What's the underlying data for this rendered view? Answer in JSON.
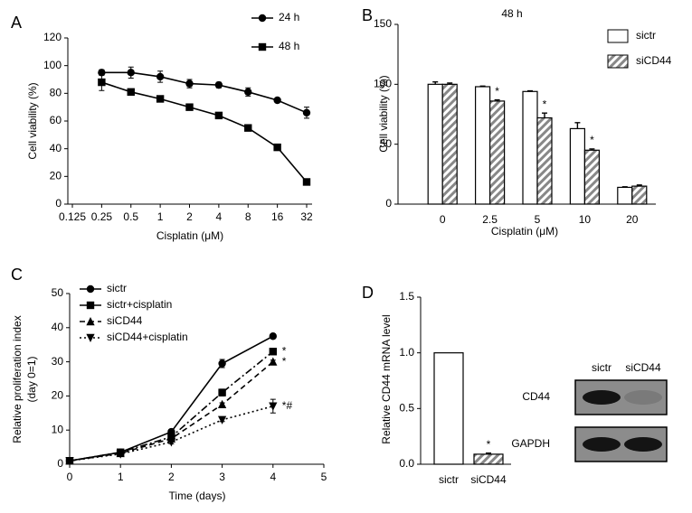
{
  "chart_data": [
    {
      "panel": "A",
      "type": "line",
      "xlabel": "Cisplatin (μM)",
      "ylabel": "Cell viability (%)",
      "x": [
        0.25,
        0.5,
        1,
        2,
        4,
        8,
        16,
        32
      ],
      "xscale": "log2",
      "xlim": [
        0.125,
        32
      ],
      "xticks": [
        0.125,
        0.25,
        0.5,
        1,
        2,
        4,
        8,
        16,
        32
      ],
      "ylim": [
        0,
        120
      ],
      "yticks": [
        0,
        20,
        40,
        60,
        80,
        100,
        120
      ],
      "legend": "upper right",
      "series": [
        {
          "name": "24 h",
          "color": "#000000",
          "marker": "circle",
          "linestyle": "solid",
          "values": [
            95,
            95,
            92,
            87,
            86,
            81,
            75,
            66
          ],
          "errors": [
            2,
            4,
            4,
            3,
            2,
            3,
            1,
            4
          ]
        },
        {
          "name": "48 h",
          "color": "#000000",
          "marker": "square",
          "linestyle": "solid",
          "values": [
            88,
            81,
            76,
            70,
            64,
            55,
            41,
            16
          ],
          "errors": [
            6,
            2,
            2,
            1,
            1,
            1,
            1,
            1
          ]
        }
      ]
    },
    {
      "panel": "B",
      "type": "bar",
      "title": "48 h",
      "xlabel": "Cisplatin (μM)",
      "ylabel": "Cell viability (%)",
      "categories": [
        "0",
        "2.5",
        "5",
        "10",
        "20"
      ],
      "ylim": [
        0,
        150
      ],
      "yticks": [
        0,
        50,
        100,
        150
      ],
      "legend": "upper right",
      "series": [
        {
          "name": "sictr",
          "color": "#ffffff",
          "hatch": false,
          "values": [
            100,
            98,
            94,
            63,
            14
          ],
          "errors": [
            2,
            0.5,
            0.5,
            5,
            0.5
          ]
        },
        {
          "name": "siCD44",
          "color": "#888888",
          "hatch": true,
          "values": [
            100,
            86,
            72,
            45,
            15
          ],
          "errors": [
            1,
            1,
            4,
            1,
            1
          ]
        }
      ],
      "annotations": [
        {
          "text": "*",
          "category": "2.5",
          "series": "siCD44"
        },
        {
          "text": "*",
          "category": "5",
          "series": "siCD44"
        },
        {
          "text": "*",
          "category": "10",
          "series": "siCD44"
        }
      ]
    },
    {
      "panel": "C",
      "type": "line",
      "xlabel": "Time (days)",
      "ylabel": [
        "Relative proliferation index",
        "(day 0=1)"
      ],
      "x": [
        0,
        1,
        2,
        3,
        4
      ],
      "xlim": [
        0,
        5
      ],
      "xticks": [
        0,
        1,
        2,
        3,
        4,
        5
      ],
      "ylim": [
        0,
        50
      ],
      "yticks": [
        0,
        10,
        20,
        30,
        40,
        50
      ],
      "legend": "upper left",
      "series": [
        {
          "name": "sictr",
          "color": "#000000",
          "marker": "circle",
          "linestyle": "solid",
          "values": [
            1,
            3.5,
            9.5,
            29.5,
            37.5
          ],
          "errors": [
            0.3,
            0.5,
            0.5,
            1.2,
            0.5
          ]
        },
        {
          "name": "sictr+cisplatin",
          "color": "#000000",
          "marker": "square",
          "linestyle": "dashdot",
          "values": [
            1,
            3.5,
            8,
            21,
            33
          ],
          "errors": [
            0.3,
            0.5,
            0.5,
            1,
            0.5
          ],
          "end_label": "*"
        },
        {
          "name": "siCD44",
          "color": "#000000",
          "marker": "triangle",
          "linestyle": "dash",
          "values": [
            1,
            3.2,
            7.5,
            17.5,
            30
          ],
          "errors": [
            0.3,
            0.5,
            0.5,
            0.5,
            0.5
          ],
          "end_label": "*"
        },
        {
          "name": "siCD44+cisplatin",
          "color": "#000000",
          "marker": "triangle-down",
          "linestyle": "dot",
          "values": [
            1,
            3,
            6.5,
            13,
            17
          ],
          "errors": [
            0.3,
            0.5,
            0.5,
            0.5,
            2
          ],
          "end_label": "*#"
        }
      ]
    },
    {
      "panel": "D",
      "type": "bar",
      "ylabel": "Relative CD44 mRNA level",
      "categories": [
        "sictr",
        "siCD44"
      ],
      "values": [
        1.0,
        0.09
      ],
      "errors": [
        0,
        0.01
      ],
      "hatch": [
        false,
        true
      ],
      "colors": [
        "#ffffff",
        "#888888"
      ],
      "ylim": [
        0,
        1.5
      ],
      "yticks": [
        {
          "value": 0,
          "label": "0.0"
        },
        0.5,
        {
          "value": 1,
          "label": "1.0"
        },
        1.5
      ],
      "annotations": [
        {
          "text": "*",
          "category": "siCD44"
        }
      ],
      "blot": {
        "lanes": [
          "sictr",
          "siCD44"
        ],
        "rows": [
          "CD44",
          "GAPDH"
        ]
      }
    }
  ]
}
